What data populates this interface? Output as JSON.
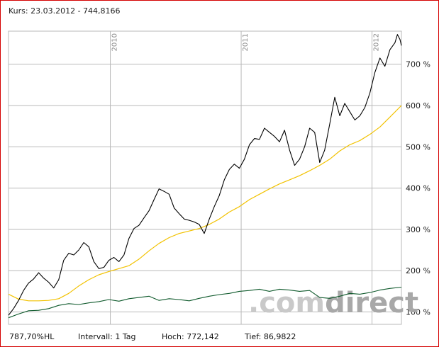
{
  "header": {
    "label": "Kurs:",
    "date": "23.03.2012",
    "separator": "-",
    "value": "744,8166",
    "line": "Kurs: 23.03.2012 - 744,8166"
  },
  "footer": {
    "performance": "787,70%HL",
    "interval": "Intervall: 1 Tag",
    "high": "Hoch:  772,142",
    "low": "Tief: 86,9822"
  },
  "watermark": {
    "text_light": ".com",
    "text_dark": "direct"
  },
  "colors": {
    "frame": "#d40000",
    "grid": "#b9b9b9",
    "price": "#000000",
    "moving_average": "#f2c200",
    "benchmark": "#0f5a2c",
    "watermark_light": "#c9c9c9",
    "watermark_dark": "#a8a8a8"
  },
  "chart_data": {
    "type": "line",
    "title": "",
    "xlabel": "",
    "ylabel": "",
    "y_unit": "%",
    "ylim": [
      70,
      780
    ],
    "xlim": [
      "2009-03-23",
      "2012-03-23"
    ],
    "grid": true,
    "y_ticks": [
      {
        "value": 100,
        "label": "100 %"
      },
      {
        "value": 200,
        "label": "200 %"
      },
      {
        "value": 300,
        "label": "300 %"
      },
      {
        "value": 400,
        "label": "400 %"
      },
      {
        "value": 500,
        "label": "500 %"
      },
      {
        "value": 600,
        "label": "600 %"
      },
      {
        "value": 700,
        "label": "700 %"
      }
    ],
    "x_ticks": [
      {
        "x": "2010-01-01",
        "label": "2010"
      },
      {
        "x": "2011-01-01",
        "label": "2011"
      },
      {
        "x": "2012-01-01",
        "label": "2012"
      }
    ],
    "series": [
      {
        "key": "price",
        "points": [
          [
            "2009-03-23",
            92
          ],
          [
            "2009-04-06",
            108
          ],
          [
            "2009-04-20",
            128
          ],
          [
            "2009-05-04",
            152
          ],
          [
            "2009-05-18",
            170
          ],
          [
            "2009-06-01",
            180
          ],
          [
            "2009-06-15",
            195
          ],
          [
            "2009-06-29",
            182
          ],
          [
            "2009-07-13",
            172
          ],
          [
            "2009-07-27",
            158
          ],
          [
            "2009-08-10",
            178
          ],
          [
            "2009-08-24",
            225
          ],
          [
            "2009-09-07",
            242
          ],
          [
            "2009-09-21",
            238
          ],
          [
            "2009-10-05",
            250
          ],
          [
            "2009-10-19",
            268
          ],
          [
            "2009-11-02",
            258
          ],
          [
            "2009-11-16",
            222
          ],
          [
            "2009-11-30",
            205
          ],
          [
            "2009-12-14",
            208
          ],
          [
            "2009-12-28",
            225
          ],
          [
            "2010-01-11",
            232
          ],
          [
            "2010-01-25",
            222
          ],
          [
            "2010-02-08",
            238
          ],
          [
            "2010-02-22",
            278
          ],
          [
            "2010-03-08",
            302
          ],
          [
            "2010-03-22",
            310
          ],
          [
            "2010-04-05",
            328
          ],
          [
            "2010-04-19",
            345
          ],
          [
            "2010-05-03",
            372
          ],
          [
            "2010-05-17",
            398
          ],
          [
            "2010-05-31",
            392
          ],
          [
            "2010-06-14",
            385
          ],
          [
            "2010-06-28",
            352
          ],
          [
            "2010-07-12",
            338
          ],
          [
            "2010-07-26",
            325
          ],
          [
            "2010-08-09",
            322
          ],
          [
            "2010-08-23",
            318
          ],
          [
            "2010-09-06",
            312
          ],
          [
            "2010-09-20",
            290
          ],
          [
            "2010-10-04",
            325
          ],
          [
            "2010-10-18",
            355
          ],
          [
            "2010-11-01",
            382
          ],
          [
            "2010-11-15",
            420
          ],
          [
            "2010-11-29",
            445
          ],
          [
            "2010-12-13",
            458
          ],
          [
            "2010-12-27",
            448
          ],
          [
            "2011-01-10",
            470
          ],
          [
            "2011-01-24",
            505
          ],
          [
            "2011-02-07",
            520
          ],
          [
            "2011-02-21",
            518
          ],
          [
            "2011-03-07",
            545
          ],
          [
            "2011-03-21",
            535
          ],
          [
            "2011-04-04",
            525
          ],
          [
            "2011-04-18",
            512
          ],
          [
            "2011-05-02",
            540
          ],
          [
            "2011-05-16",
            492
          ],
          [
            "2011-05-30",
            455
          ],
          [
            "2011-06-13",
            470
          ],
          [
            "2011-06-27",
            500
          ],
          [
            "2011-07-11",
            545
          ],
          [
            "2011-07-25",
            535
          ],
          [
            "2011-08-08",
            462
          ],
          [
            "2011-08-22",
            492
          ],
          [
            "2011-09-05",
            555
          ],
          [
            "2011-09-19",
            620
          ],
          [
            "2011-10-03",
            575
          ],
          [
            "2011-10-17",
            605
          ],
          [
            "2011-10-31",
            585
          ],
          [
            "2011-11-14",
            565
          ],
          [
            "2011-11-28",
            575
          ],
          [
            "2011-12-12",
            595
          ],
          [
            "2011-12-26",
            630
          ],
          [
            "2012-01-09",
            680
          ],
          [
            "2012-01-23",
            715
          ],
          [
            "2012-02-06",
            695
          ],
          [
            "2012-02-20",
            735
          ],
          [
            "2012-03-05",
            752
          ],
          [
            "2012-03-12",
            772
          ],
          [
            "2012-03-19",
            760
          ],
          [
            "2012-03-23",
            745
          ]
        ]
      },
      {
        "key": "moving_average",
        "points": [
          [
            "2009-03-23",
            143
          ],
          [
            "2009-04-20",
            131
          ],
          [
            "2009-05-18",
            127
          ],
          [
            "2009-06-15",
            127
          ],
          [
            "2009-07-13",
            128
          ],
          [
            "2009-08-10",
            132
          ],
          [
            "2009-09-07",
            145
          ],
          [
            "2009-10-05",
            163
          ],
          [
            "2009-11-02",
            178
          ],
          [
            "2009-11-30",
            190
          ],
          [
            "2009-12-28",
            198
          ],
          [
            "2010-01-25",
            205
          ],
          [
            "2010-02-22",
            212
          ],
          [
            "2010-03-22",
            228
          ],
          [
            "2010-04-19",
            248
          ],
          [
            "2010-05-17",
            266
          ],
          [
            "2010-06-14",
            280
          ],
          [
            "2010-07-12",
            290
          ],
          [
            "2010-08-09",
            296
          ],
          [
            "2010-09-06",
            302
          ],
          [
            "2010-10-04",
            312
          ],
          [
            "2010-11-01",
            325
          ],
          [
            "2010-11-29",
            342
          ],
          [
            "2010-12-27",
            355
          ],
          [
            "2011-01-24",
            372
          ],
          [
            "2011-02-21",
            385
          ],
          [
            "2011-03-21",
            398
          ],
          [
            "2011-04-18",
            410
          ],
          [
            "2011-05-16",
            420
          ],
          [
            "2011-06-13",
            430
          ],
          [
            "2011-07-11",
            442
          ],
          [
            "2011-08-08",
            455
          ],
          [
            "2011-09-05",
            470
          ],
          [
            "2011-10-03",
            490
          ],
          [
            "2011-10-31",
            505
          ],
          [
            "2011-11-28",
            515
          ],
          [
            "2011-12-26",
            530
          ],
          [
            "2012-01-23",
            548
          ],
          [
            "2012-02-20",
            572
          ],
          [
            "2012-03-23",
            600
          ]
        ]
      },
      {
        "key": "benchmark",
        "points": [
          [
            "2009-03-23",
            86
          ],
          [
            "2009-04-20",
            95
          ],
          [
            "2009-05-18",
            103
          ],
          [
            "2009-06-15",
            104
          ],
          [
            "2009-07-13",
            108
          ],
          [
            "2009-08-10",
            116
          ],
          [
            "2009-09-07",
            120
          ],
          [
            "2009-10-05",
            118
          ],
          [
            "2009-11-02",
            122
          ],
          [
            "2009-11-30",
            125
          ],
          [
            "2009-12-28",
            130
          ],
          [
            "2010-01-25",
            126
          ],
          [
            "2010-02-22",
            132
          ],
          [
            "2010-03-22",
            135
          ],
          [
            "2010-04-19",
            138
          ],
          [
            "2010-05-17",
            128
          ],
          [
            "2010-06-14",
            132
          ],
          [
            "2010-07-12",
            130
          ],
          [
            "2010-08-09",
            127
          ],
          [
            "2010-09-06",
            133
          ],
          [
            "2010-10-04",
            138
          ],
          [
            "2010-11-01",
            142
          ],
          [
            "2010-11-29",
            145
          ],
          [
            "2010-12-27",
            150
          ],
          [
            "2011-01-24",
            152
          ],
          [
            "2011-02-21",
            155
          ],
          [
            "2011-03-21",
            150
          ],
          [
            "2011-04-18",
            155
          ],
          [
            "2011-05-16",
            153
          ],
          [
            "2011-06-13",
            150
          ],
          [
            "2011-07-11",
            152
          ],
          [
            "2011-08-08",
            135
          ],
          [
            "2011-09-05",
            133
          ],
          [
            "2011-10-03",
            138
          ],
          [
            "2011-10-31",
            145
          ],
          [
            "2011-11-28",
            143
          ],
          [
            "2011-12-26",
            147
          ],
          [
            "2012-01-23",
            153
          ],
          [
            "2012-02-20",
            157
          ],
          [
            "2012-03-23",
            160
          ]
        ]
      }
    ]
  }
}
